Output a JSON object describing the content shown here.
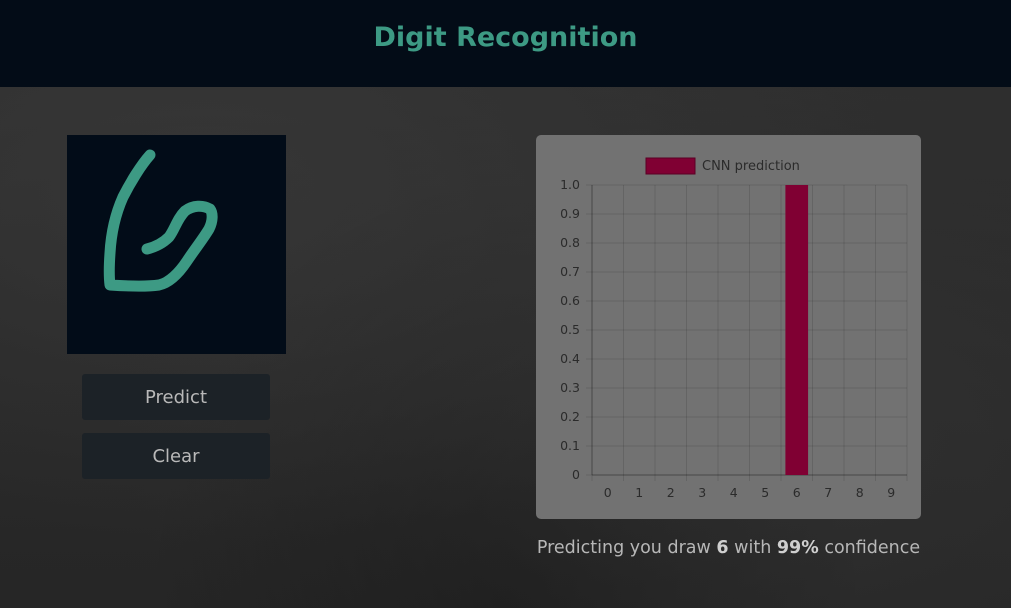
{
  "header": {
    "title": "Digit Recognition"
  },
  "drawing": {
    "stroke_color": "#3d9a84",
    "background": "#020c18"
  },
  "buttons": {
    "predict_label": "Predict",
    "clear_label": "Clear"
  },
  "result": {
    "prefix": "Predicting you draw",
    "digit": "6",
    "middle": "with",
    "confidence": "99%",
    "suffix": "confidence"
  },
  "chart_data": {
    "type": "bar",
    "categories": [
      "0",
      "1",
      "2",
      "3",
      "4",
      "5",
      "6",
      "7",
      "8",
      "9"
    ],
    "series": [
      {
        "name": "CNN prediction",
        "values": [
          0,
          0,
          0,
          0,
          0,
          0,
          1.0,
          0,
          0,
          0
        ],
        "color": "#800033"
      }
    ],
    "y_ticks": [
      "0",
      "0.1",
      "0.2",
      "0.3",
      "0.4",
      "0.5",
      "0.6",
      "0.7",
      "0.8",
      "0.9",
      "1.0"
    ],
    "ylim": [
      0,
      1.0
    ],
    "grid": true,
    "legend": "top-center"
  }
}
